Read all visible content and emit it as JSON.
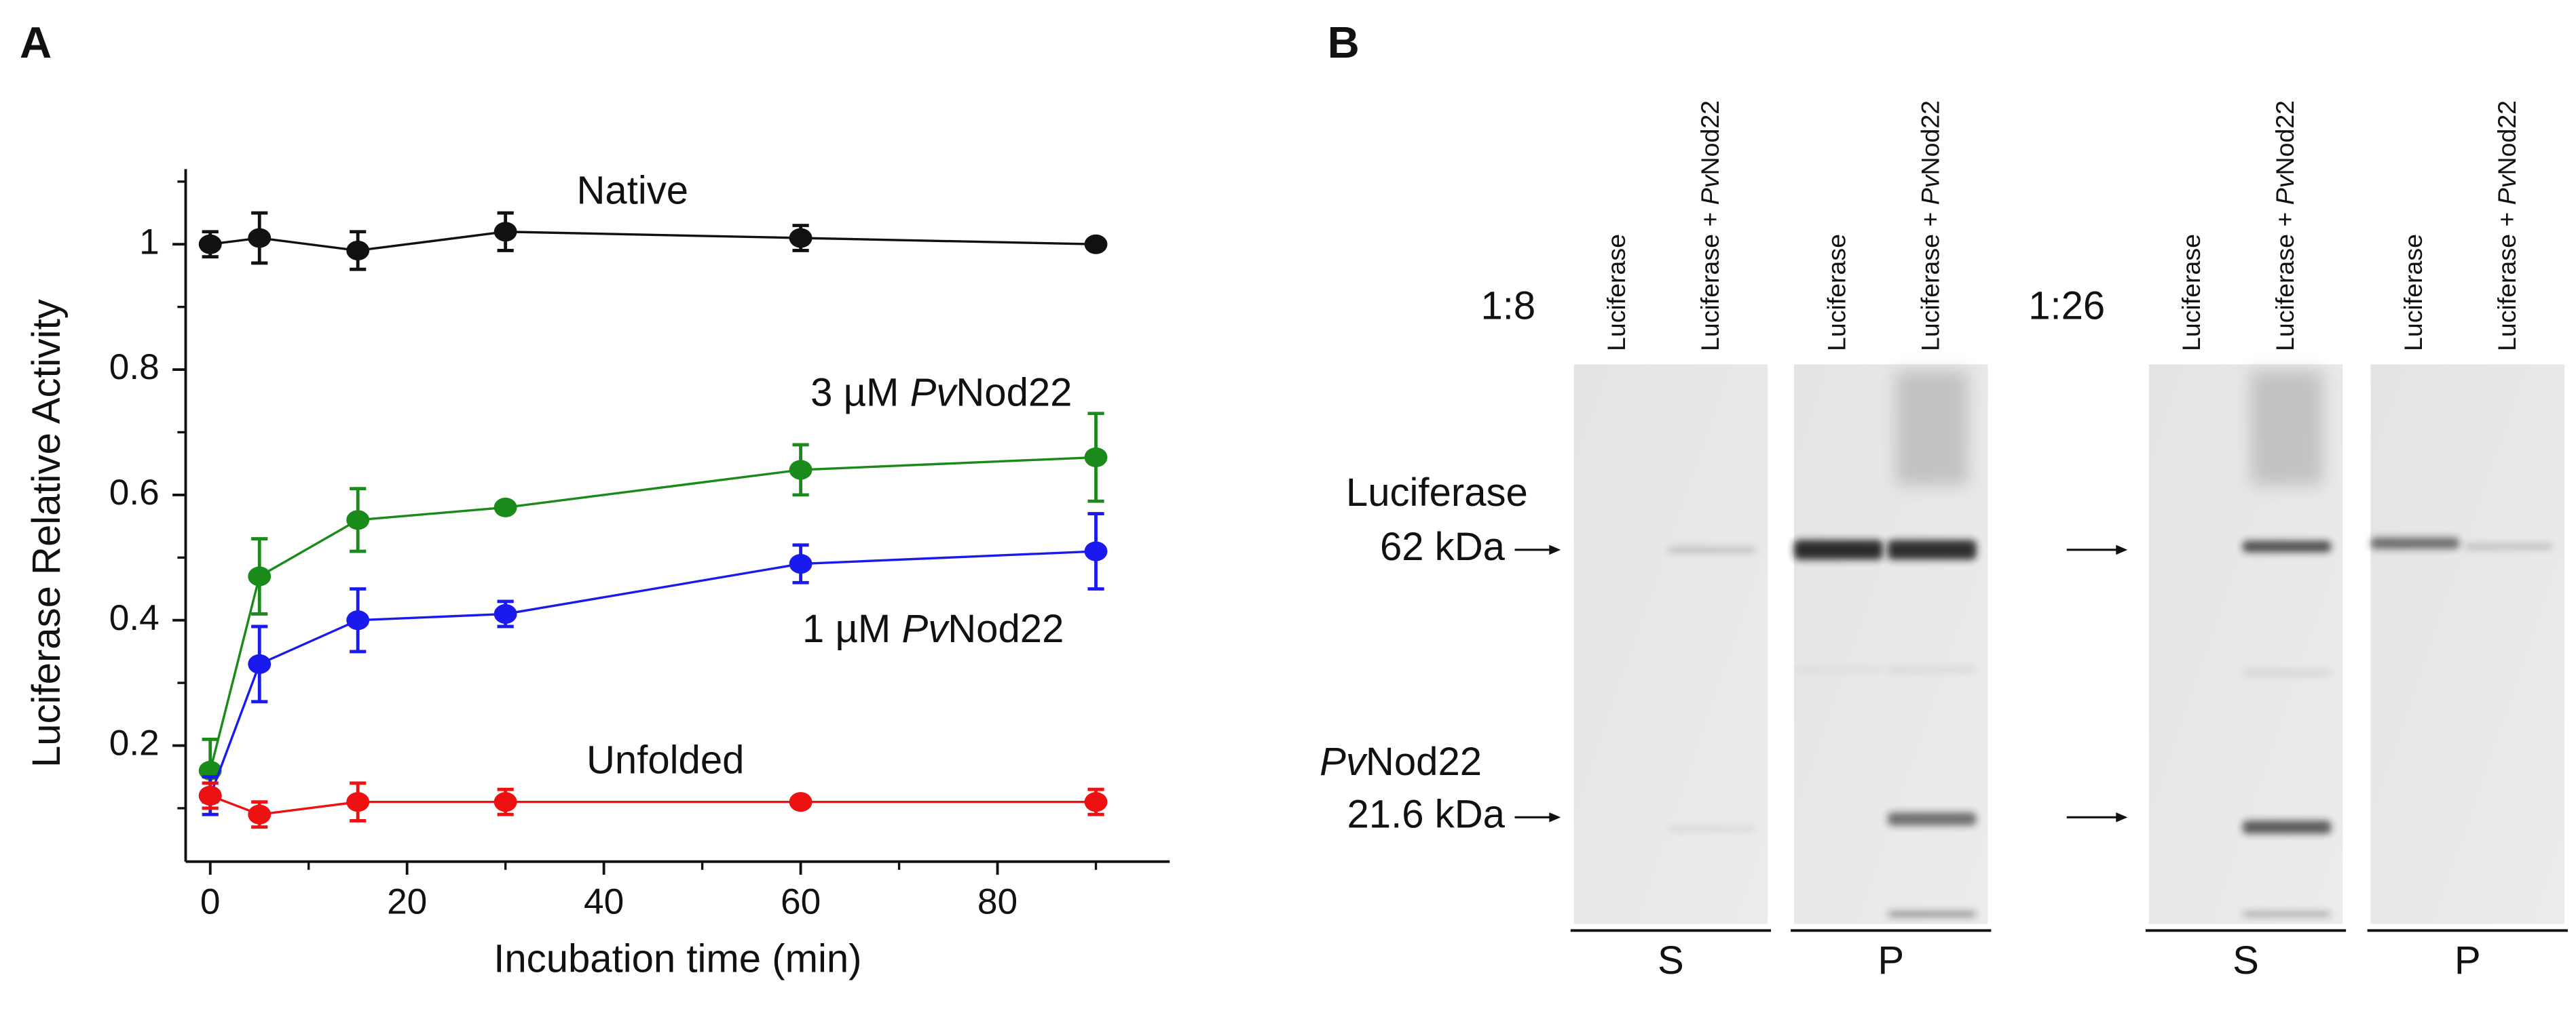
{
  "panel_labels": [
    "A",
    "B"
  ],
  "chart_data": {
    "type": "line",
    "x_label": "Incubation time (min)",
    "y_label": "Luciferase Relative Activity",
    "x": [
      0,
      5,
      15,
      30,
      60,
      90
    ],
    "series": [
      {
        "name": [
          "Native"
        ],
        "color": "#111111",
        "values": [
          1.0,
          1.01,
          0.99,
          1.02,
          1.01,
          1.0
        ],
        "errors": [
          0.02,
          0.04,
          0.03,
          0.03,
          0.02,
          0.005
        ]
      },
      {
        "name": [
          "3 µM ",
          "Pv",
          "Nod22"
        ],
        "color": "#1a8a1a",
        "values": [
          0.16,
          0.47,
          0.56,
          0.58,
          0.64,
          0.66
        ],
        "errors": [
          0.05,
          0.06,
          0.05,
          0.005,
          0.04,
          0.07
        ]
      },
      {
        "name": [
          "1 µM ",
          "Pv",
          "Nod22"
        ],
        "color": "#1a1aee",
        "values": [
          0.12,
          0.33,
          0.4,
          0.41,
          0.49,
          0.51
        ],
        "errors": [
          0.03,
          0.06,
          0.05,
          0.02,
          0.03,
          0.06
        ]
      },
      {
        "name": [
          "Unfolded"
        ],
        "color": "#ee1111",
        "values": [
          0.12,
          0.09,
          0.11,
          0.11,
          0.11,
          0.11
        ],
        "errors": [
          0.02,
          0.02,
          0.03,
          0.02,
          0.005,
          0.02
        ]
      }
    ],
    "xlim": [
      -2.5,
      97.5
    ],
    "xticks": [
      0,
      20,
      40,
      60,
      80
    ],
    "xminorticks": [
      10,
      30,
      50,
      70,
      90
    ],
    "ylim": [
      0.02,
      1.12
    ],
    "yticks": [
      0.2,
      0.4,
      0.6,
      0.8,
      1
    ],
    "yminorticks": [
      0.1,
      0.3,
      0.5,
      0.7,
      0.9,
      1.1
    ],
    "grid": false
  },
  "gel": {
    "ratios": [
      "1:8",
      "1:26"
    ],
    "lanes": [
      [
        "Luciferase"
      ],
      [
        "Luciferase + ",
        "Pv",
        "Nod22"
      ]
    ],
    "fractions": [
      "S",
      "P",
      "S",
      "P"
    ],
    "markers": [
      {
        "name": [
          "Luciferase"
        ],
        "size": "62 kDa"
      },
      {
        "name": [
          "Pv",
          "Nod22"
        ],
        "size": "21.6 kDa"
      }
    ]
  }
}
